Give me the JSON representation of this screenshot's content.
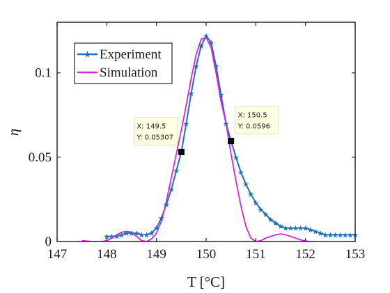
{
  "chart_data": {
    "type": "line",
    "xlabel": "T [°C]",
    "ylabel": "η",
    "xlim": [
      147,
      153
    ],
    "ylim": [
      0,
      0.13
    ],
    "xticks": [
      "147",
      "148",
      "149",
      "150",
      "151",
      "152",
      "153"
    ],
    "yticks": [
      "0",
      "0.05",
      "0.1"
    ],
    "legend": {
      "location": "top-left",
      "entries": [
        "Experiment",
        "Simulation"
      ]
    },
    "series": [
      {
        "name": "Experiment",
        "color": "#1f6fb8",
        "marker": "star",
        "x": [
          148.0,
          148.1,
          148.2,
          148.3,
          148.4,
          148.5,
          148.6,
          148.7,
          148.8,
          148.9,
          149.0,
          149.1,
          149.2,
          149.3,
          149.4,
          149.5,
          149.6,
          149.7,
          149.8,
          149.9,
          150.0,
          150.1,
          150.2,
          150.3,
          150.4,
          150.5,
          150.6,
          150.7,
          150.8,
          150.9,
          151.0,
          151.1,
          151.2,
          151.3,
          151.4,
          151.5,
          151.6,
          151.7,
          151.8,
          151.9,
          152.0,
          152.1,
          152.2,
          152.3,
          152.4,
          152.5,
          152.6,
          152.7,
          152.8,
          152.9,
          153.0
        ],
        "y": [
          0.003,
          0.003,
          0.003,
          0.004,
          0.005,
          0.005,
          0.005,
          0.004,
          0.004,
          0.005,
          0.008,
          0.014,
          0.022,
          0.031,
          0.042,
          0.053,
          0.07,
          0.088,
          0.104,
          0.116,
          0.122,
          0.118,
          0.104,
          0.087,
          0.07,
          0.0596,
          0.05,
          0.041,
          0.034,
          0.028,
          0.023,
          0.019,
          0.016,
          0.013,
          0.011,
          0.009,
          0.008,
          0.008,
          0.008,
          0.008,
          0.008,
          0.007,
          0.006,
          0.005,
          0.004,
          0.004,
          0.004,
          0.004,
          0.004,
          0.004,
          0.004
        ]
      },
      {
        "name": "Simulation",
        "color": "#dd22dd",
        "x": [
          147.5,
          147.7,
          147.9,
          148.0,
          148.1,
          148.2,
          148.3,
          148.4,
          148.5,
          148.6,
          148.7,
          148.8,
          148.9,
          149.0,
          149.1,
          149.2,
          149.3,
          149.4,
          149.5,
          149.6,
          149.7,
          149.8,
          149.9,
          150.0,
          150.1,
          150.2,
          150.3,
          150.4,
          150.5,
          150.6,
          150.7,
          150.8,
          150.9,
          151.0,
          151.1,
          151.2,
          151.3,
          151.4,
          151.5,
          151.6,
          151.7,
          151.8,
          151.9,
          152.0,
          152.1,
          152.2
        ],
        "y": [
          0.0005,
          0.0,
          0.0,
          0.0005,
          0.002,
          0.004,
          0.0055,
          0.006,
          0.0055,
          0.003,
          0.0005,
          0.0,
          0.0015,
          0.005,
          0.012,
          0.024,
          0.038,
          0.052,
          0.066,
          0.081,
          0.097,
          0.111,
          0.12,
          0.121,
          0.115,
          0.1,
          0.083,
          0.07,
          0.052,
          0.036,
          0.021,
          0.009,
          0.002,
          0.0,
          0.0005,
          0.002,
          0.003,
          0.004,
          0.0045,
          0.004,
          0.003,
          0.002,
          0.001,
          0.0003,
          0.0,
          0.0
        ]
      }
    ],
    "datatips": [
      {
        "point": [
          149.5,
          0.05307
        ],
        "x_text": "X:  149.5",
        "y_text": "Y:  0.05307"
      },
      {
        "point": [
          150.5,
          0.0596
        ],
        "x_text": "X:  150.5",
        "y_text": "Y:  0.0596"
      }
    ]
  }
}
